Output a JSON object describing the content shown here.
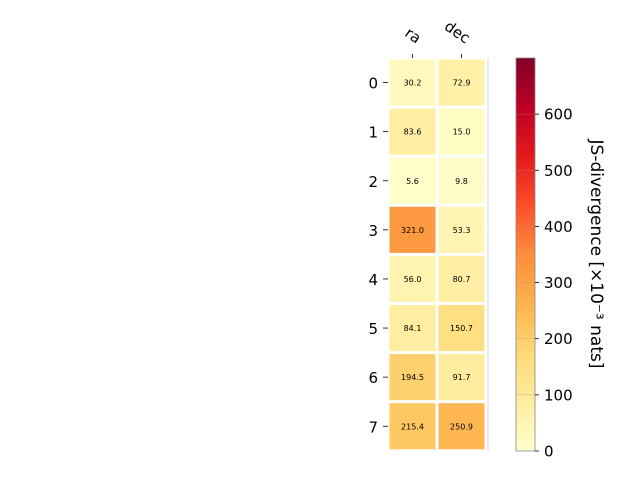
{
  "chart_data": {
    "type": "heatmap",
    "columns": [
      "ra",
      "dec"
    ],
    "rows": [
      "0",
      "1",
      "2",
      "3",
      "4",
      "5",
      "6",
      "7"
    ],
    "values": [
      [
        30.2,
        72.9
      ],
      [
        83.6,
        15.0
      ],
      [
        5.6,
        9.8
      ],
      [
        321.0,
        53.3
      ],
      [
        56.0,
        80.7
      ],
      [
        84.1,
        150.7
      ],
      [
        194.5,
        91.7
      ],
      [
        215.4,
        250.9
      ]
    ],
    "labels": [
      [
        "30.2",
        "72.9"
      ],
      [
        "83.6",
        "15.0"
      ],
      [
        "5.6",
        "9.8"
      ],
      [
        "321.0",
        "53.3"
      ],
      [
        "56.0",
        "80.7"
      ],
      [
        "84.1",
        "150.7"
      ],
      [
        "194.5",
        "91.7"
      ],
      [
        "215.4",
        "250.9"
      ]
    ],
    "colorbar": {
      "label": "JS-divergence [×10⁻³ nats]",
      "range": [
        0,
        700
      ],
      "ticks": [
        0,
        100,
        200,
        300,
        400,
        500,
        600
      ],
      "tick_labels": [
        "0",
        "100",
        "200",
        "300",
        "400",
        "500",
        "600"
      ],
      "colormap": "YlOrRd"
    },
    "label_color_threshold": 180,
    "grid": false
  }
}
